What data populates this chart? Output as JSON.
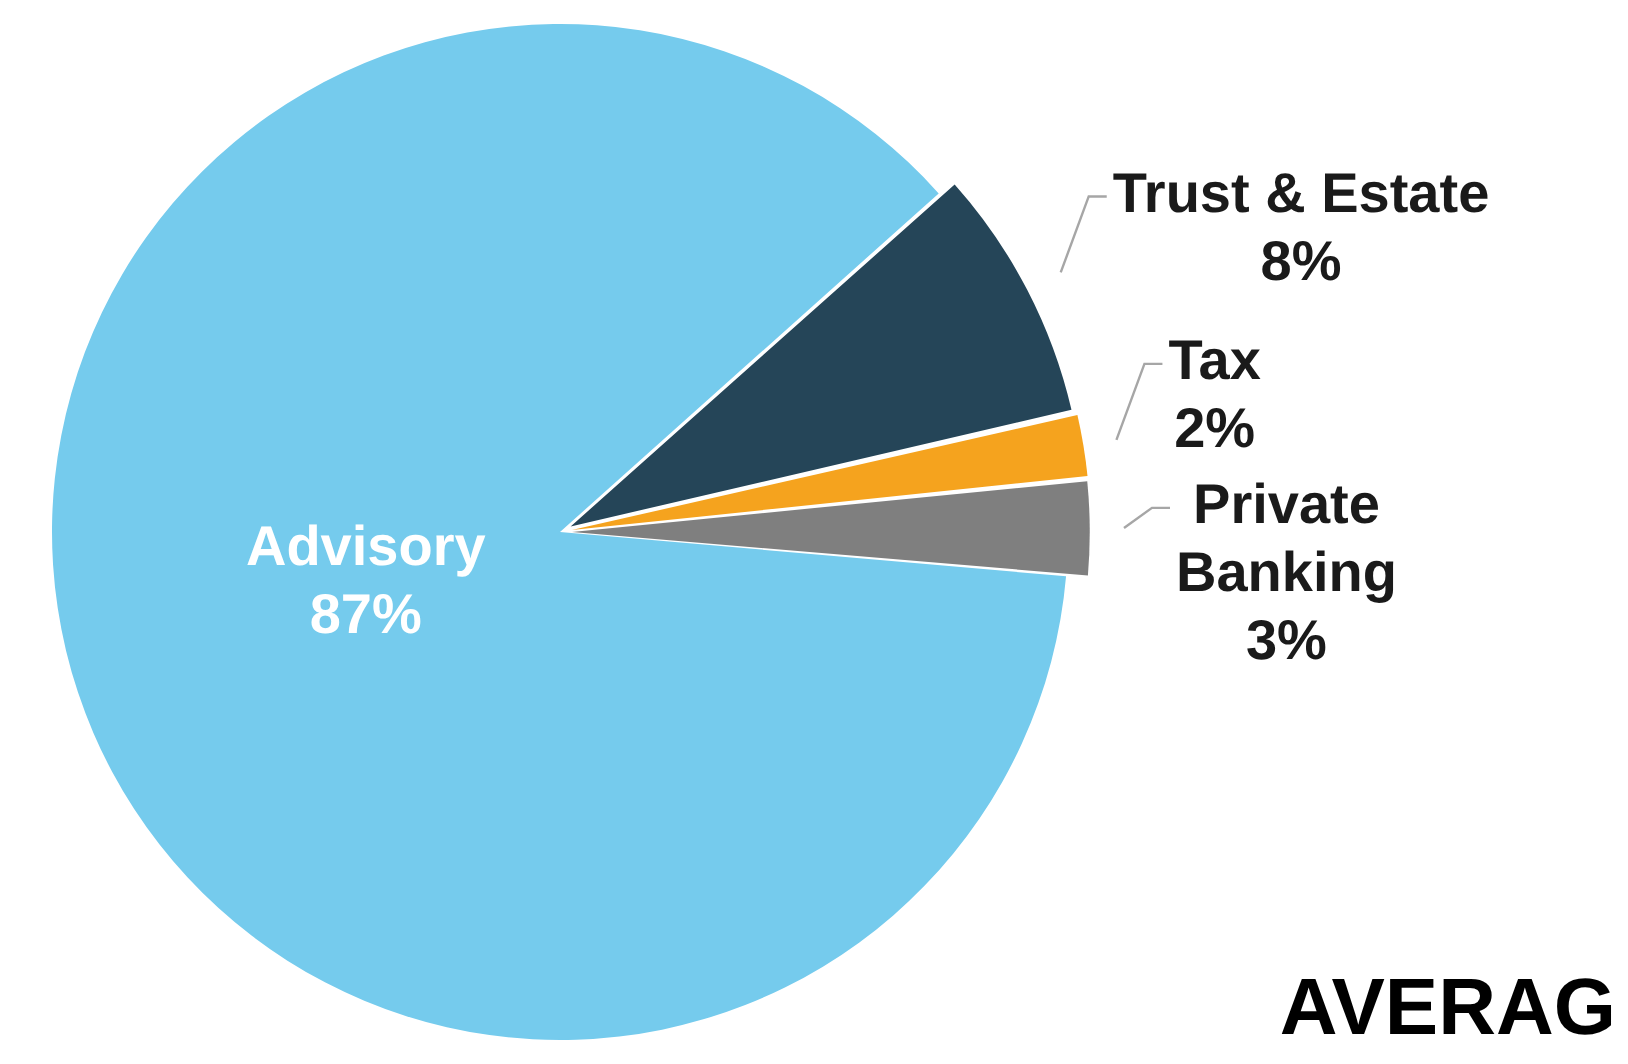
{
  "chart_data": {
    "type": "pie",
    "categories": [
      "Advisory",
      "Trust & Estate",
      "Tax",
      "Private Banking"
    ],
    "values": [
      87,
      8,
      2,
      3
    ],
    "colors": [
      "#75cbed",
      "#254558",
      "#f5a31e",
      "#7f7f7f"
    ],
    "value_labels": [
      "87%",
      "8%",
      "2%",
      "3%"
    ],
    "legend": false,
    "annotations": [
      "AVERAG"
    ]
  }
}
